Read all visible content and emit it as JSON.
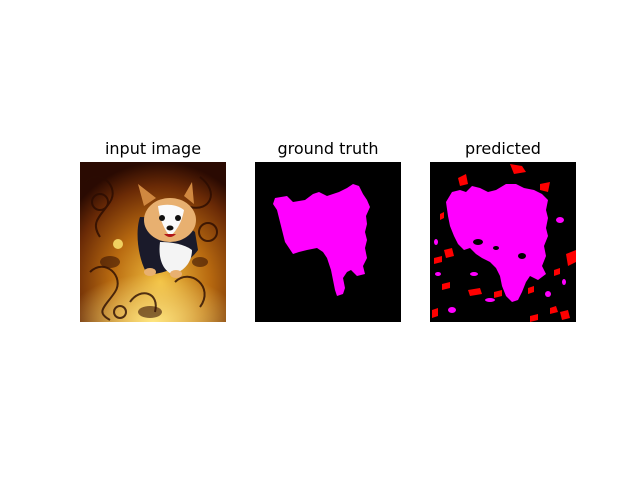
{
  "panels": [
    {
      "title": "input image"
    },
    {
      "title": "ground truth"
    },
    {
      "title": "predicted"
    }
  ],
  "colors": {
    "background": "#000000",
    "foreground_mask": "#ff00ff",
    "error_mask": "#ff0000",
    "page": "#ffffff"
  }
}
